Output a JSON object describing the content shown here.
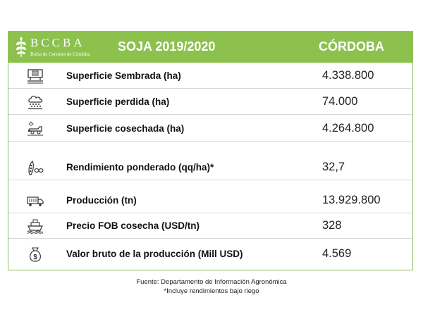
{
  "header": {
    "logo_name": "BCCBA",
    "logo_subtitle": "Bolsa de Cereales de Córdoba",
    "title": "SOJA 2019/2020",
    "region": "CÓRDOBA",
    "color": "#8dc14d"
  },
  "rows": [
    {
      "icon": "field-sign-icon",
      "label": "Superficie Sembrada (ha)",
      "value": "4.338.800"
    },
    {
      "icon": "hail-cloud-icon",
      "label": "Superficie perdida (ha)",
      "value": "74.000"
    },
    {
      "icon": "harvester-icon",
      "label": "Superficie cosechada (ha)",
      "value": "4.264.800"
    },
    {
      "icon": "soybean-pod-icon",
      "label": "Rendimiento ponderado (qq/ha)*",
      "value": "32,7"
    },
    {
      "icon": "truck-icon",
      "label": "Producción (tn)",
      "value": "13.929.800"
    },
    {
      "icon": "ship-icon",
      "label": "Precio FOB cosecha (USD/tn)",
      "value": "328"
    },
    {
      "icon": "money-bag-icon",
      "label": "Valor bruto de la producción (Mill USD)",
      "value": "4.569"
    }
  ],
  "footer": {
    "source": "Fuente: Departamento de Información Agronómica",
    "note": "*Incluye rendimientos bajo riego"
  }
}
